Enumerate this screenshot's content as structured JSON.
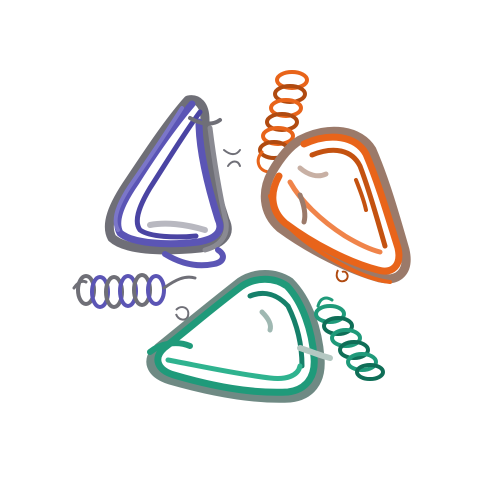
{
  "scene": {
    "background": "#ffffff",
    "subject": "protein-trimer-ribbon-cartoon",
    "chains": [
      {
        "id": "A",
        "color": "#5b55b5",
        "shadow": "#6f6f77"
      },
      {
        "id": "B",
        "color": "#e8641a",
        "shadow": "#9b7a6a"
      },
      {
        "id": "C",
        "color": "#1f9a7a",
        "shadow": "#6f8a84"
      }
    ]
  }
}
